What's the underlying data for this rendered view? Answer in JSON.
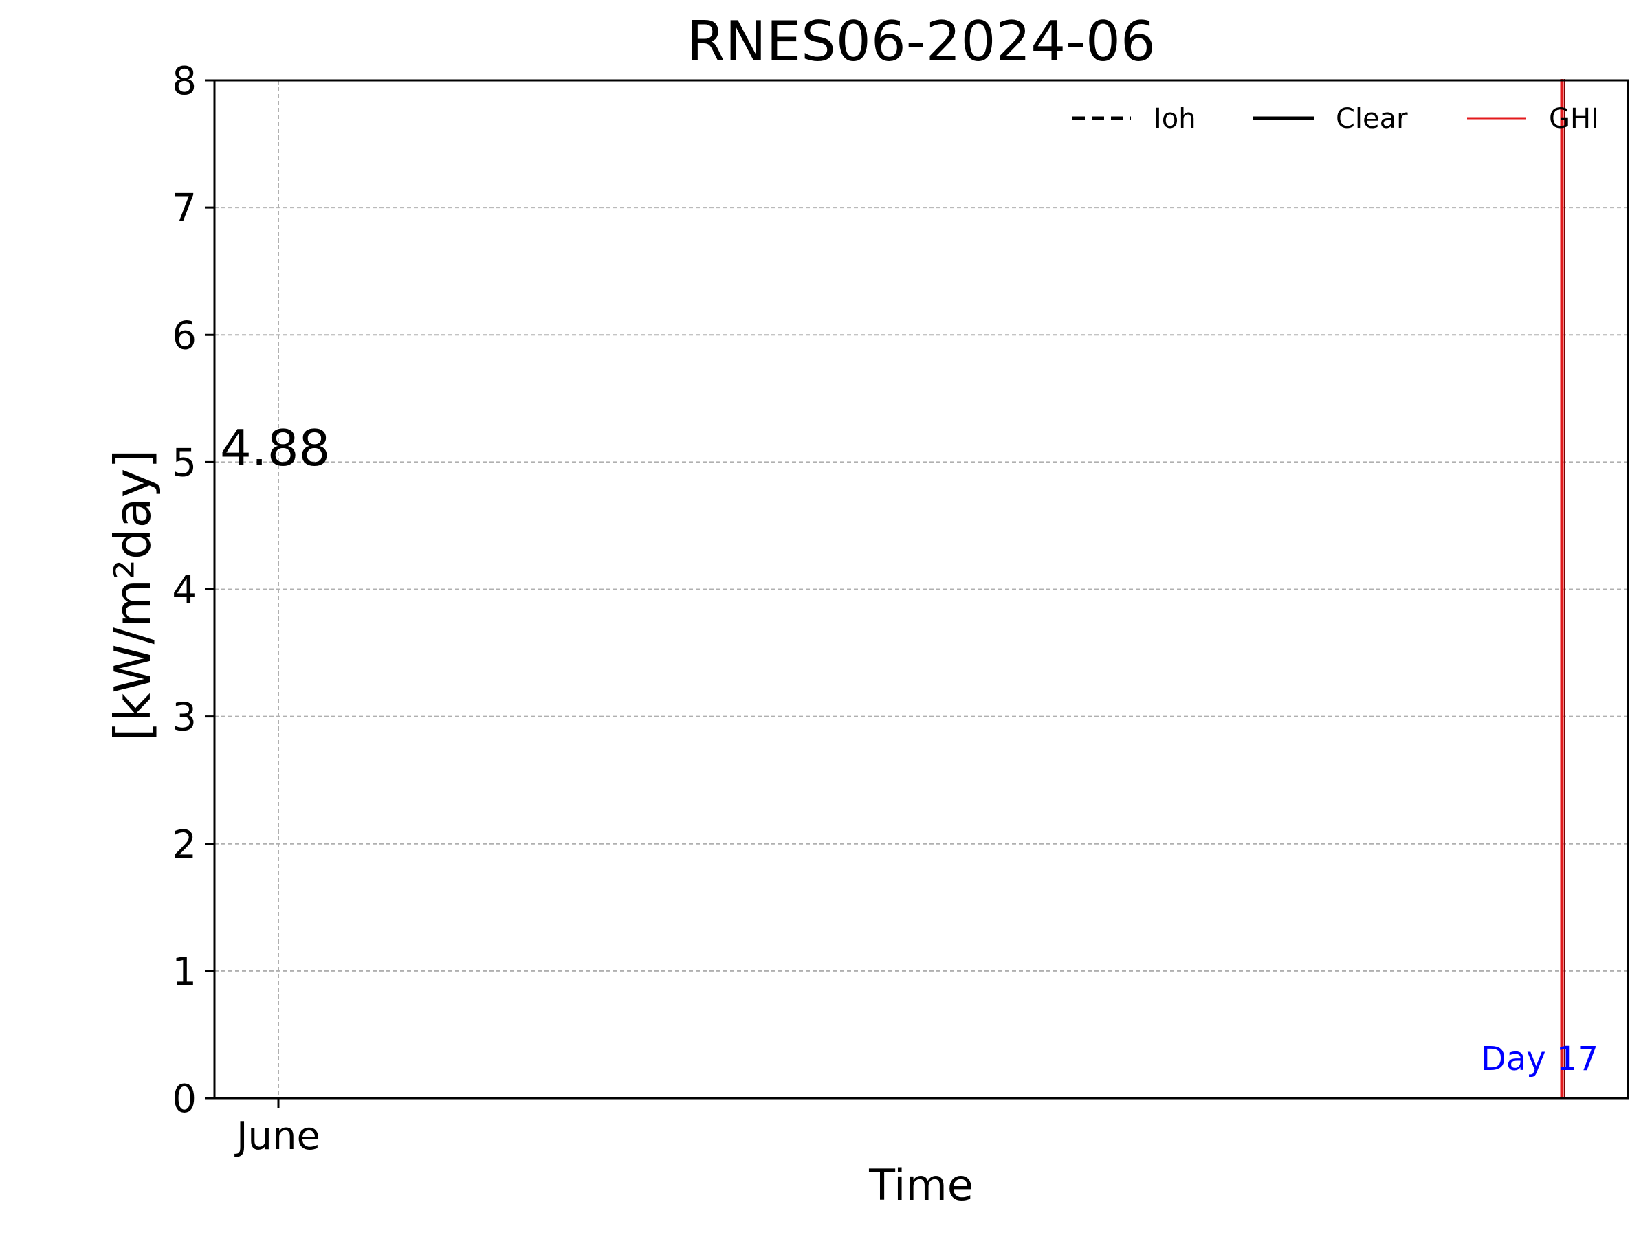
{
  "chart_data": {
    "type": "line",
    "title": "RNES06-2024-06",
    "xlabel": "Time",
    "ylabel": "[kW/m²day]",
    "ylim": [
      0,
      8
    ],
    "y_ticks": [
      "0",
      "1",
      "2",
      "3",
      "4",
      "5",
      "6",
      "7",
      "8"
    ],
    "x_ticks": [
      "June"
    ],
    "grid": true,
    "legend_position": "top-right",
    "annotation_value": "4.88",
    "day_label": "Day 17",
    "day_label_color": "#0000ff",
    "series": [
      {
        "name": "Ioh",
        "style": "dashed",
        "color": "#000000",
        "values": []
      },
      {
        "name": "Clear",
        "style": "solid",
        "color": "#000000",
        "values": []
      },
      {
        "name": "GHI",
        "style": "solid",
        "color": "#e31a1c",
        "values": []
      }
    ],
    "vertical_marker": {
      "color": "#e31a1c",
      "x_label": "Day 17"
    }
  }
}
